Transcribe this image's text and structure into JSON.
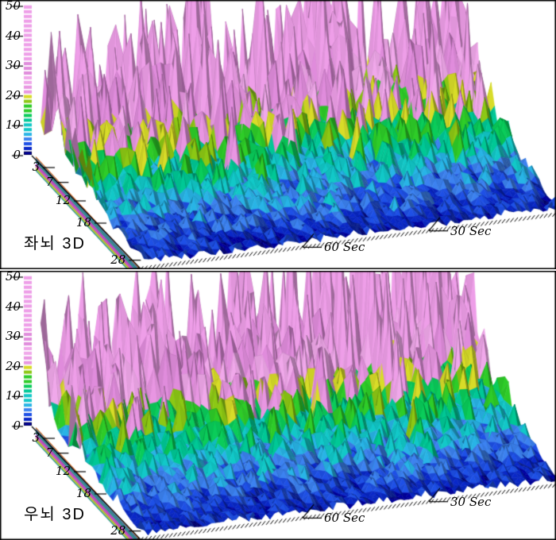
{
  "window": {
    "background": "#ffffff",
    "border_color": "#000000",
    "panel_count": 2
  },
  "colormap": {
    "shade_factor_back_face": 0.7,
    "colorbar_position": "left",
    "colorbar_segments": 32,
    "stops": [
      [
        0,
        "#0000A0"
      ],
      [
        1.8,
        "#0A28C8"
      ],
      [
        3.5,
        "#1E50E6"
      ],
      [
        5.0,
        "#3C82F0"
      ],
      [
        6.8,
        "#28B4E6"
      ],
      [
        8.5,
        "#12C8C8"
      ],
      [
        10.5,
        "#00C896"
      ],
      [
        12.5,
        "#0ACC5A"
      ],
      [
        14.5,
        "#2ECC28"
      ],
      [
        16.5,
        "#8CC814"
      ],
      [
        18.2,
        "#D8DC28"
      ],
      [
        20.0,
        "#E896E2"
      ],
      [
        23.0,
        "#F0A8EA"
      ],
      [
        27.0,
        "#E08CDC"
      ],
      [
        32.0,
        "#EE9EE8"
      ]
    ],
    "axis_edge_line_colors": [
      "#CC5500",
      "#2A6699",
      "#17667F",
      "#0E7373",
      "#0E8080",
      "#A625A6",
      "#B22DB2",
      "#BE35BE",
      "#9FB20E",
      "#ABBE11",
      "#0E8A8A"
    ]
  },
  "chart_data": [
    {
      "type": "heatmap",
      "variant": "3d-surface-spectrogram",
      "title": "좌뇌 3D",
      "panel": "top",
      "z_axis": {
        "ticks": [
          0,
          10,
          20,
          30,
          40,
          50
        ],
        "range": [
          0,
          50
        ],
        "peaks_clipped_above": true
      },
      "freq_axis": {
        "ticks": [
          3,
          7,
          12,
          18,
          28
        ],
        "range_hz": [
          0,
          30
        ]
      },
      "time_axis": {
        "ticks": [
          {
            "sec": 30,
            "label": "30 Sec"
          },
          {
            "sec": 60,
            "label": "60 Sec"
          }
        ],
        "range_sec": [
          0,
          100
        ],
        "direction": "increases-right-to-left"
      },
      "mean_amplitude_by_hz": {
        "0-3": 21,
        "4-7": 14,
        "8-12": 10,
        "13-18": 6,
        "19-28": 2.5
      },
      "peak_events": "irregular broadband bursts exceeding 50 (clipped at plot top)",
      "seed": 1337
    },
    {
      "type": "heatmap",
      "variant": "3d-surface-spectrogram",
      "title": "우뇌 3D",
      "panel": "bottom",
      "z_axis": {
        "ticks": [
          0,
          10,
          20,
          30,
          40,
          50
        ],
        "range": [
          0,
          50
        ],
        "peaks_clipped_above": true
      },
      "freq_axis": {
        "ticks": [
          3,
          7,
          12,
          18,
          28
        ],
        "range_hz": [
          0,
          30
        ]
      },
      "time_axis": {
        "ticks": [
          {
            "sec": 30,
            "label": "30 Sec"
          },
          {
            "sec": 60,
            "label": "60 Sec"
          }
        ],
        "range_sec": [
          0,
          100
        ],
        "direction": "increases-right-to-left"
      },
      "mean_amplitude_by_hz": {
        "0-3": 21,
        "4-7": 14,
        "8-12": 10,
        "13-18": 6,
        "19-28": 2.5
      },
      "peak_events": "irregular broadband bursts exceeding 50 (clipped at plot top)",
      "seed": 9002
    }
  ]
}
